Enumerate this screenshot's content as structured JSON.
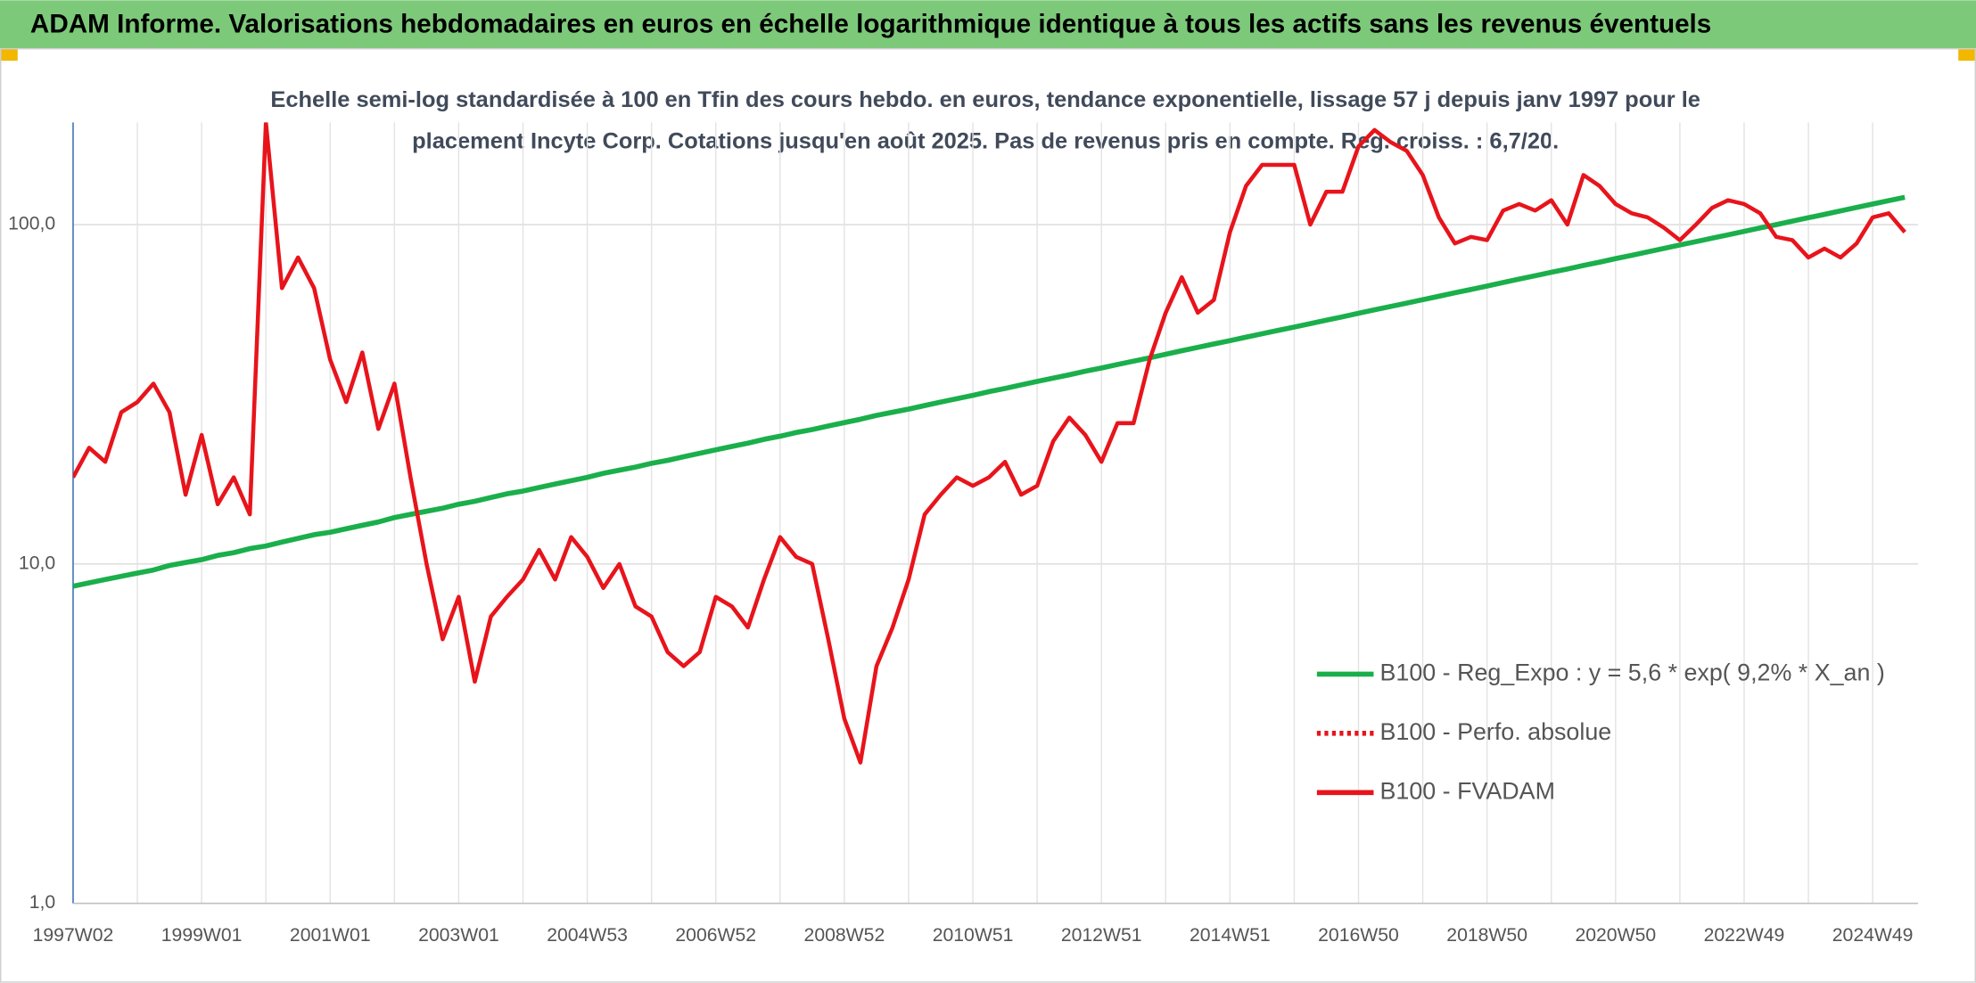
{
  "header": {
    "title": "ADAM Informe. Valorisations hebdomadaires en euros en échelle logarithmique identique à tous les actifs sans les revenus éventuels"
  },
  "chart_data": {
    "type": "line",
    "title": [
      "Echelle semi-log standardisée à 100 en Tfin des cours hebdo. en euros, tendance exponentielle, lissage 57 j depuis janv 1997 pour le",
      "placement Incyte Corp. Cotations jusqu'en août 2025. Pas de revenus pris en compte. Reg. croiss. : 6,7/20."
    ],
    "categories": [
      "1997W02",
      null,
      null,
      null,
      null,
      null,
      null,
      null,
      "1999W01",
      null,
      null,
      null,
      null,
      null,
      null,
      null,
      "2001W01",
      null,
      null,
      null,
      null,
      null,
      null,
      null,
      "2003W01",
      null,
      null,
      null,
      null,
      null,
      null,
      null,
      "2004W53",
      null,
      null,
      null,
      null,
      null,
      null,
      null,
      "2006W52",
      null,
      null,
      null,
      null,
      null,
      null,
      null,
      "2008W52",
      null,
      null,
      null,
      null,
      null,
      null,
      null,
      "2010W51",
      null,
      null,
      null,
      null,
      null,
      null,
      null,
      "2012W51",
      null,
      null,
      null,
      null,
      null,
      null,
      null,
      "2014W51",
      null,
      null,
      null,
      null,
      null,
      null,
      null,
      "2016W50",
      null,
      null,
      null,
      null,
      null,
      null,
      null,
      "2018W50",
      null,
      null,
      null,
      null,
      null,
      null,
      null,
      "2020W50",
      null,
      null,
      null,
      null,
      null,
      null,
      null,
      "2022W49",
      null,
      null,
      null,
      null,
      null,
      null,
      null,
      "2024W49",
      null,
      null
    ],
    "series": [
      {
        "name": "B100 - Reg_Expo : y = 5,6 * exp( 9,2% *  X_an )",
        "color": "#1aaf4b",
        "dash": "solid",
        "values": [
          8.6,
          8.8,
          9.0,
          9.2,
          9.4,
          9.6,
          9.9,
          10.1,
          10.3,
          10.6,
          10.8,
          11.1,
          11.3,
          11.6,
          11.9,
          12.2,
          12.4,
          12.7,
          13.0,
          13.3,
          13.7,
          14.0,
          14.3,
          14.6,
          15.0,
          15.3,
          15.7,
          16.1,
          16.4,
          16.8,
          17.2,
          17.6,
          18.0,
          18.5,
          18.9,
          19.3,
          19.8,
          20.2,
          20.7,
          21.2,
          21.7,
          22.2,
          22.7,
          23.3,
          23.8,
          24.4,
          24.9,
          25.5,
          26.1,
          26.7,
          27.4,
          28.0,
          28.6,
          29.3,
          30.0,
          30.7,
          31.4,
          32.2,
          32.9,
          33.7,
          34.5,
          35.3,
          36.1,
          37.0,
          37.8,
          38.7,
          39.6,
          40.5,
          41.5,
          42.5,
          43.5,
          44.5,
          45.5,
          46.6,
          47.7,
          48.8,
          49.9,
          51.1,
          52.3,
          53.5,
          54.8,
          56.1,
          57.4,
          58.7,
          60.1,
          61.5,
          63.0,
          64.4,
          65.9,
          67.5,
          69.1,
          70.7,
          72.4,
          74.0,
          75.8,
          77.5,
          79.4,
          81.2,
          83.1,
          85.1,
          87.1,
          89.1,
          91.2,
          93.3,
          95.5,
          97.8,
          100.0,
          102.4,
          104.8,
          107.2,
          109.8,
          112.4,
          115.0,
          117.7,
          120.4
        ]
      },
      {
        "name": "B100 - Perfo. absolue",
        "color": "#e8141b",
        "dash": "dotted",
        "values": [
          null,
          null,
          null,
          null,
          null,
          null,
          null,
          null,
          null,
          null,
          null,
          null,
          null,
          null,
          null,
          null,
          null,
          null,
          null,
          null,
          null,
          null,
          null,
          null,
          null,
          null,
          null,
          null,
          null,
          null,
          null,
          null,
          null,
          null,
          null,
          null,
          null,
          null,
          null,
          null,
          null,
          null,
          null,
          null,
          null,
          null,
          null,
          null,
          null,
          null,
          null,
          null,
          null,
          null,
          null,
          null,
          null,
          null,
          null,
          null,
          null,
          null,
          null,
          null,
          null,
          null,
          null,
          null,
          null,
          null,
          null,
          null,
          null,
          null,
          null,
          null,
          null,
          null,
          null,
          null,
          null,
          null,
          null,
          null,
          null,
          null,
          null,
          null,
          null,
          null,
          null,
          null,
          null,
          null,
          null,
          null,
          null,
          null,
          null,
          null,
          null,
          null,
          null,
          null,
          null,
          null,
          null,
          null,
          null,
          null,
          null,
          null,
          null,
          null,
          null
        ]
      },
      {
        "name": "B100 - FVADAM",
        "color": "#e8141b",
        "dash": "solid",
        "values": [
          18,
          22,
          20,
          28,
          30,
          34,
          28,
          16,
          24,
          15,
          18,
          14,
          200,
          65,
          80,
          65,
          40,
          30,
          42,
          25,
          34,
          18,
          10,
          6,
          8,
          4.5,
          7,
          8,
          9,
          11,
          9,
          12,
          10.5,
          8.5,
          10,
          7.5,
          7,
          5.5,
          5,
          5.5,
          8,
          7.5,
          6.5,
          9,
          12,
          10.5,
          10,
          6,
          3.5,
          2.6,
          5,
          6.5,
          9,
          14,
          16,
          18,
          17,
          18,
          20,
          16,
          17,
          23,
          27,
          24,
          20,
          26,
          26,
          40,
          55,
          70,
          55,
          60,
          95,
          130,
          150,
          150,
          150,
          100,
          125,
          125,
          170,
          190,
          175,
          165,
          140,
          105,
          88,
          92,
          90,
          110,
          115,
          110,
          118,
          100,
          140,
          130,
          115,
          108,
          105,
          98,
          90,
          100,
          112,
          118,
          115,
          108,
          92,
          90,
          80,
          85,
          80,
          88,
          105,
          108,
          95
        ]
      }
    ],
    "ylim": [
      1,
      200
    ],
    "log_scale": true,
    "yticks": [
      {
        "value": 1,
        "label": "1,0"
      },
      {
        "value": 10,
        "label": "10,0"
      },
      {
        "value": 100,
        "label": "100,0"
      }
    ],
    "grid": true
  }
}
